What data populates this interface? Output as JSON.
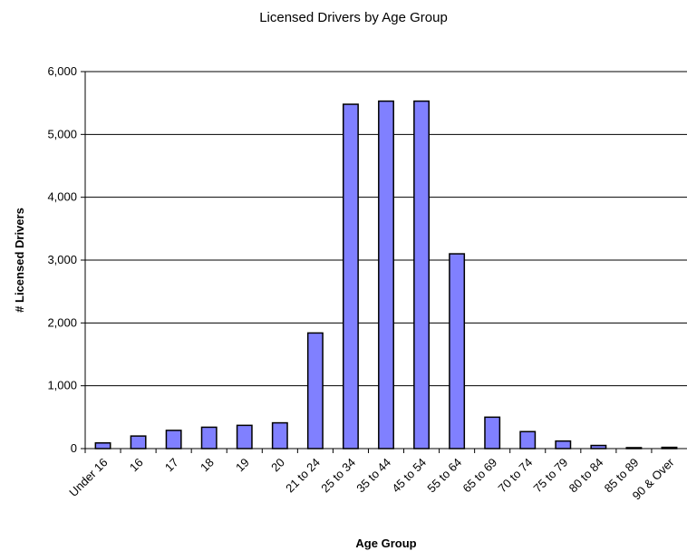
{
  "chart_data": {
    "type": "bar",
    "title": "Licensed Drivers by Age Group",
    "xlabel": "Age Group",
    "ylabel": "# Licensed Drivers",
    "ylim": [
      0,
      6000
    ],
    "yticks": [
      "0",
      "1,000",
      "2,000",
      "3,000",
      "4,000",
      "5,000",
      "6,000"
    ],
    "grid": true,
    "bar_color": "#8080ff",
    "categories": [
      "Under 16",
      "16",
      "17",
      "18",
      "19",
      "20",
      "21 to 24",
      "25 to 34",
      "35 to 44",
      "45 to 54",
      "55 to 64",
      "65 to 69",
      "70 to 74",
      "75 to 79",
      "80 to 84",
      "85 to 89",
      "90 & Over"
    ],
    "values": [
      90,
      200,
      290,
      340,
      370,
      410,
      1840,
      5480,
      5530,
      5530,
      3100,
      500,
      270,
      120,
      50,
      15,
      20
    ]
  }
}
